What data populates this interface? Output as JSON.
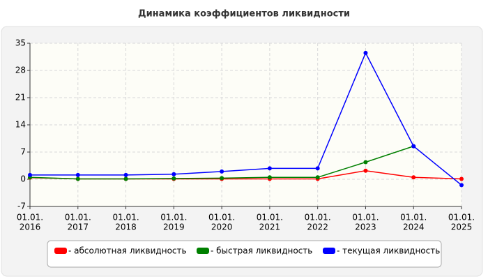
{
  "chart_data": {
    "type": "line",
    "title": "Динамика коэффициентов ликвидности",
    "categories": [
      [
        "01.01.",
        "2016"
      ],
      [
        "01.01.",
        "2017"
      ],
      [
        "01.01.",
        "2018"
      ],
      [
        "01.01.",
        "2019"
      ],
      [
        "01.01.",
        "2020"
      ],
      [
        "01.01.",
        "2021"
      ],
      [
        "01.01.",
        "2022"
      ],
      [
        "01.01.",
        "2023"
      ],
      [
        "01.01.",
        "2024"
      ],
      [
        "01.01.",
        "2025"
      ]
    ],
    "series": [
      {
        "name": "- абсолютная ликвидность",
        "color": "#ff0000",
        "values": [
          0.4,
          0.1,
          0.1,
          0.1,
          0.1,
          0.1,
          0.1,
          2.2,
          0.5,
          0.1
        ]
      },
      {
        "name": "- быстрая ликвидность",
        "color": "#008000",
        "values": [
          0.5,
          0.1,
          0.1,
          0.2,
          0.3,
          0.5,
          0.5,
          4.4,
          8.5,
          null
        ]
      },
      {
        "name": "- текущая ликвидность",
        "color": "#0000ff",
        "values": [
          1.1,
          1.1,
          1.1,
          1.3,
          2.0,
          2.8,
          2.8,
          32.5,
          8.5,
          -1.5
        ]
      }
    ],
    "ylim": [
      -7,
      35
    ],
    "yticks": [
      -7,
      0,
      7,
      14,
      21,
      28,
      35
    ],
    "grid": true,
    "legend": "bottom"
  }
}
